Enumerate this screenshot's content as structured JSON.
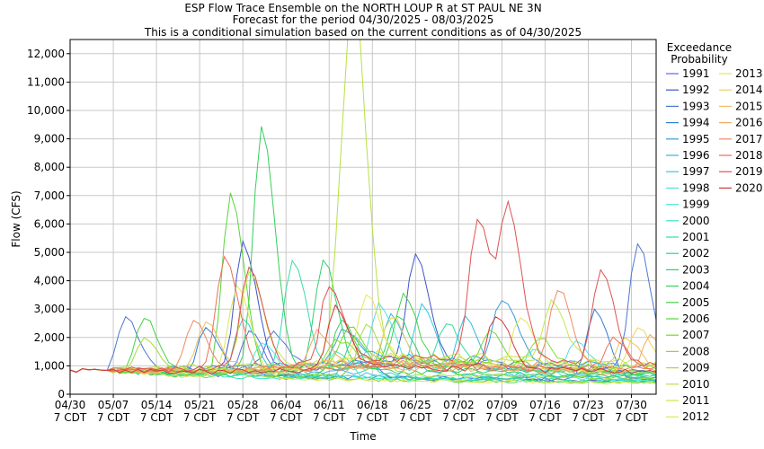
{
  "chart_data": {
    "type": "line",
    "title": "ESP Flow Trace Ensemble on the NORTH LOUP R at ST PAUL NE 3N",
    "subtitle1": "Forecast for the period 04/30/2025 - 08/03/2025",
    "subtitle2": "This is a conditional simulation based on the current conditions as of 04/30/2025",
    "xlabel": "Time",
    "ylabel": "Flow (CFS)",
    "ylim": [
      0,
      12500
    ],
    "y_ticks": [
      0,
      1000,
      2000,
      3000,
      4000,
      5000,
      6000,
      7000,
      8000,
      9000,
      10000,
      11000,
      12000
    ],
    "y_tick_labels": [
      "0",
      "1,000",
      "2,000",
      "3,000",
      "4,000",
      "5,000",
      "6,000",
      "7,000",
      "8,000",
      "9,000",
      "10,000",
      "11,000",
      "12,000"
    ],
    "x_start": "2025-04-30",
    "x_end": "2025-08-03",
    "x_ticks": [
      "2025-04-30",
      "2025-05-07",
      "2025-05-14",
      "2025-05-21",
      "2025-05-28",
      "2025-06-04",
      "2025-06-11",
      "2025-06-18",
      "2025-06-25",
      "2025-07-02",
      "2025-07-09",
      "2025-07-16",
      "2025-07-23",
      "2025-07-30"
    ],
    "x_tick_labels": [
      {
        "date": "04/30",
        "time": "7 CDT"
      },
      {
        "date": "05/07",
        "time": "7 CDT"
      },
      {
        "date": "05/14",
        "time": "7 CDT"
      },
      {
        "date": "05/21",
        "time": "7 CDT"
      },
      {
        "date": "05/28",
        "time": "7 CDT"
      },
      {
        "date": "06/04",
        "time": "7 CDT"
      },
      {
        "date": "06/11",
        "time": "7 CDT"
      },
      {
        "date": "06/18",
        "time": "7 CDT"
      },
      {
        "date": "06/25",
        "time": "7 CDT"
      },
      {
        "date": "07/02",
        "time": "7 CDT"
      },
      {
        "date": "07/09",
        "time": "7 CDT"
      },
      {
        "date": "07/16",
        "time": "7 CDT"
      },
      {
        "date": "07/23",
        "time": "7 CDT"
      },
      {
        "date": "07/30",
        "time": "7 CDT"
      }
    ],
    "grid": true,
    "legend_position": "right",
    "legend_title_1": "Exceedance",
    "legend_title_2": "Probability",
    "initial_flow": [
      [
        "2025-04-30",
        850
      ],
      [
        "2025-05-01",
        780
      ],
      [
        "2025-05-02",
        900
      ],
      [
        "2025-05-03",
        860
      ],
      [
        "2025-05-04",
        880
      ],
      [
        "2025-05-05",
        850
      ],
      [
        "2025-05-06",
        840
      ]
    ],
    "series": [
      {
        "name": "1991",
        "color": "#5b6bd9",
        "base": [
          820,
          700,
          600,
          560,
          520,
          480,
          450
        ],
        "peaks": [
          [
            "2025-05-29",
            2200
          ],
          [
            "2025-06-16",
            1400
          ]
        ]
      },
      {
        "name": "1992",
        "color": "#3f55c8",
        "base": [
          850,
          800,
          900,
          1100,
          1000,
          900,
          800
        ],
        "peaks": [
          [
            "2025-05-28",
            5350
          ],
          [
            "2025-06-25",
            4900
          ]
        ]
      },
      {
        "name": "1993",
        "color": "#4b78d0",
        "base": [
          840,
          900,
          1000,
          1200,
          1100,
          1000,
          900
        ],
        "peaks": [
          [
            "2025-05-09",
            2750
          ],
          [
            "2025-06-02",
            2200
          ],
          [
            "2025-07-31",
            5350
          ]
        ]
      },
      {
        "name": "1994",
        "color": "#2f7fd0",
        "base": [
          830,
          700,
          650,
          600,
          560,
          520,
          500
        ],
        "peaks": [
          [
            "2025-05-22",
            2300
          ],
          [
            "2025-07-24",
            2950
          ]
        ]
      },
      {
        "name": "1995",
        "color": "#3a9ad8",
        "base": [
          850,
          900,
          1000,
          1300,
          1200,
          1100,
          1000
        ],
        "peaks": [
          [
            "2025-06-13",
            2300
          ],
          [
            "2025-07-09",
            3400
          ]
        ]
      },
      {
        "name": "1996",
        "color": "#36b6e0",
        "base": [
          840,
          750,
          700,
          800,
          750,
          650,
          600
        ],
        "peaks": [
          [
            "2025-06-21",
            2800
          ],
          [
            "2025-07-03",
            2700
          ]
        ]
      },
      {
        "name": "1997",
        "color": "#35c8d8",
        "base": [
          830,
          700,
          650,
          700,
          650,
          600,
          560
        ],
        "peaks": [
          [
            "2025-05-28",
            2650
          ],
          [
            "2025-06-26",
            3100
          ]
        ]
      },
      {
        "name": "1998",
        "color": "#4fe0e6",
        "base": [
          840,
          800,
          850,
          1000,
          900,
          800,
          700
        ],
        "peaks": [
          [
            "2025-06-19",
            3100
          ],
          [
            "2025-07-21",
            1800
          ]
        ]
      },
      {
        "name": "1999",
        "color": "#4ce8d8",
        "base": [
          830,
          700,
          650,
          600,
          560,
          520,
          480
        ],
        "peaks": [
          [
            "2025-05-31",
            1800
          ],
          [
            "2025-07-14",
            1600
          ]
        ]
      },
      {
        "name": "2000",
        "color": "#3ee2c3",
        "base": [
          820,
          650,
          580,
          540,
          500,
          460,
          420
        ],
        "peaks": [
          [
            "2025-06-12",
            1500
          ]
        ]
      },
      {
        "name": "2001",
        "color": "#36dca6",
        "base": [
          840,
          780,
          800,
          950,
          900,
          800,
          700
        ],
        "peaks": [
          [
            "2025-06-05",
            4800
          ],
          [
            "2025-06-30",
            2500
          ]
        ]
      },
      {
        "name": "2002",
        "color": "#2ed38a",
        "base": [
          830,
          700,
          620,
          580,
          540,
          500,
          460
        ],
        "peaks": [
          [
            "2025-06-15",
            2000
          ]
        ]
      },
      {
        "name": "2003",
        "color": "#2ecf6e",
        "base": [
          840,
          800,
          820,
          900,
          850,
          750,
          650
        ],
        "peaks": [
          [
            "2025-06-10",
            4850
          ],
          [
            "2025-06-22",
            2800
          ]
        ]
      },
      {
        "name": "2004",
        "color": "#36d05a",
        "base": [
          830,
          750,
          700,
          800,
          750,
          650,
          600
        ],
        "peaks": [
          [
            "2025-05-31",
            9350
          ],
          [
            "2025-06-13",
            2600
          ]
        ]
      },
      {
        "name": "2005",
        "color": "#45d246",
        "base": [
          840,
          800,
          850,
          1000,
          950,
          850,
          750
        ],
        "peaks": [
          [
            "2025-05-12",
            2650
          ],
          [
            "2025-06-23",
            3600
          ]
        ]
      },
      {
        "name": "2006",
        "color": "#5ad43a",
        "base": [
          820,
          650,
          560,
          500,
          460,
          420,
          400
        ],
        "peaks": [
          [
            "2025-05-26",
            7000
          ]
        ]
      },
      {
        "name": "2007",
        "color": "#70d834",
        "base": [
          840,
          800,
          850,
          1100,
          1000,
          900,
          800
        ],
        "peaks": [
          [
            "2025-06-14",
            2500
          ],
          [
            "2025-07-07",
            2200
          ]
        ]
      },
      {
        "name": "2008",
        "color": "#88dc32",
        "base": [
          840,
          850,
          900,
          1200,
          1100,
          1000,
          900
        ],
        "peaks": [
          [
            "2025-06-12",
            2100
          ],
          [
            "2025-07-15",
            2000
          ]
        ]
      },
      {
        "name": "2009",
        "color": "#a0de3a",
        "base": [
          830,
          700,
          650,
          700,
          650,
          600,
          550
        ],
        "peaks": [
          [
            "2025-05-12",
            1900
          ],
          [
            "2025-06-17",
            2400
          ]
        ]
      },
      {
        "name": "2010",
        "color": "#b6e242",
        "base": [
          850,
          900,
          1000,
          1300,
          1200,
          1100,
          1000
        ],
        "peaks": [
          [
            "2025-06-13",
            5900
          ],
          [
            "2025-06-15",
            11800
          ]
        ]
      },
      {
        "name": "2011",
        "color": "#c9e64a",
        "base": [
          850,
          950,
          1100,
          1400,
          1300,
          1200,
          1100
        ],
        "peaks": [
          [
            "2025-05-29",
            4300
          ],
          [
            "2025-07-17",
            3200
          ]
        ]
      },
      {
        "name": "2012",
        "color": "#dbe850",
        "base": [
          820,
          640,
          560,
          500,
          460,
          420,
          380
        ],
        "peaks": [
          [
            "2025-05-27",
            3800
          ]
        ]
      },
      {
        "name": "2013",
        "color": "#e7e455",
        "base": [
          840,
          800,
          900,
          1100,
          1000,
          900,
          800
        ],
        "peaks": [
          [
            "2025-06-17",
            3500
          ],
          [
            "2025-07-12",
            2600
          ]
        ]
      },
      {
        "name": "2014",
        "color": "#ecd45e",
        "base": [
          840,
          780,
          850,
          1000,
          950,
          850,
          750
        ],
        "peaks": [
          [
            "2025-06-21",
            2800
          ],
          [
            "2025-07-31",
            2400
          ]
        ]
      },
      {
        "name": "2015",
        "color": "#f0bf62",
        "base": [
          850,
          900,
          1000,
          1200,
          1100,
          1000,
          900
        ],
        "peaks": [
          [
            "2025-05-22",
            2500
          ],
          [
            "2025-07-29",
            2000
          ]
        ]
      },
      {
        "name": "2016",
        "color": "#f2a866",
        "base": [
          840,
          800,
          850,
          950,
          900,
          800,
          700
        ],
        "peaks": [
          [
            "2025-06-09",
            2300
          ],
          [
            "2025-08-02",
            2050
          ]
        ]
      },
      {
        "name": "2017",
        "color": "#ee8a62",
        "base": [
          840,
          850,
          950,
          1100,
          1000,
          950,
          900
        ],
        "peaks": [
          [
            "2025-05-20",
            2600
          ],
          [
            "2025-07-18",
            3750
          ]
        ]
      },
      {
        "name": "2018",
        "color": "#ea705c",
        "base": [
          840,
          800,
          850,
          1000,
          950,
          900,
          900
        ],
        "peaks": [
          [
            "2025-05-25",
            4950
          ],
          [
            "2025-07-27",
            1950
          ]
        ]
      },
      {
        "name": "2019",
        "color": "#e05252",
        "base": [
          850,
          900,
          1000,
          1300,
          1200,
          1100,
          1000
        ],
        "peaks": [
          [
            "2025-05-29",
            4550
          ],
          [
            "2025-06-11",
            4100
          ],
          [
            "2025-07-05",
            6200
          ],
          [
            "2025-07-10",
            6350
          ],
          [
            "2025-07-25",
            4300
          ]
        ]
      },
      {
        "name": "2020",
        "color": "#d03a3a",
        "base": [
          840,
          800,
          850,
          950,
          900,
          850,
          800
        ],
        "peaks": [
          [
            "2025-06-12",
            3100
          ],
          [
            "2025-07-08",
            2800
          ]
        ]
      }
    ]
  }
}
